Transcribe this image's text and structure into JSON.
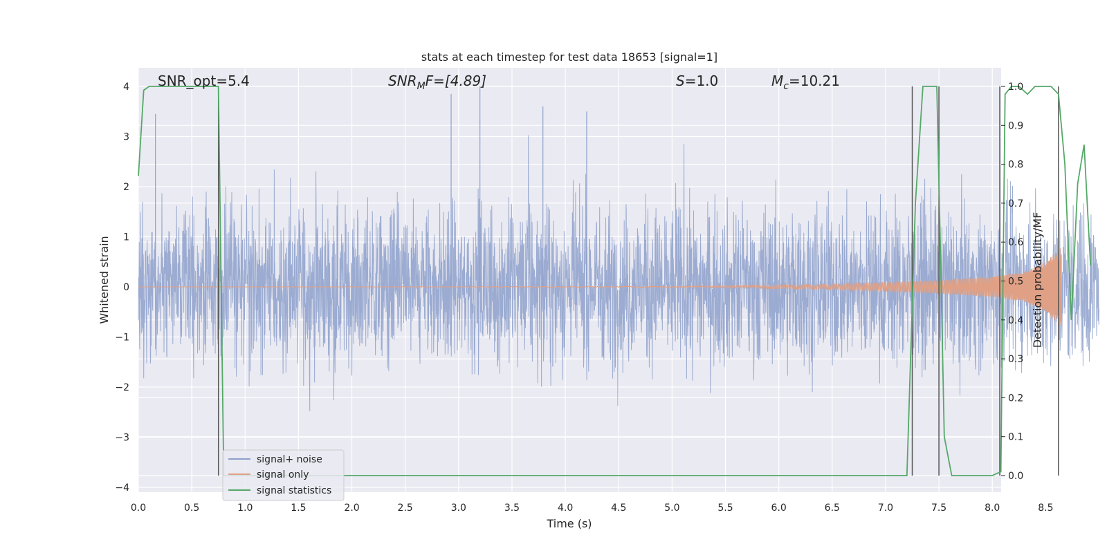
{
  "chart_data": {
    "type": "line",
    "title": "stats at each timestep for test data 18653 [signal=1]",
    "xlabel": "Time (s)",
    "ylabel": "Whitened strain",
    "y2label": "Detection probability/MF",
    "xlim": [
      0.0,
      9.0
    ],
    "ylim": [
      -4.3,
      4.4
    ],
    "y2lim": [
      -0.045,
      1.045
    ],
    "xticks": [
      "0.0",
      "0.5",
      "1.0",
      "1.5",
      "2.0",
      "2.5",
      "3.0",
      "3.5",
      "4.0",
      "4.5",
      "5.0",
      "5.5",
      "6.0",
      "6.5",
      "7.0",
      "7.5",
      "8.0",
      "8.5"
    ],
    "xtick_values": [
      0.0,
      0.5,
      1.0,
      1.5,
      2.0,
      2.5,
      3.0,
      3.5,
      4.0,
      4.5,
      5.0,
      5.5,
      6.0,
      6.5,
      7.0,
      7.5,
      8.0,
      8.5
    ],
    "yticks": [
      "4",
      "3",
      "2",
      "1",
      "0",
      "−1",
      "−2",
      "−3",
      "−4"
    ],
    "ytick_values": [
      4,
      3,
      2,
      1,
      0,
      -1,
      -2,
      -3,
      -4
    ],
    "y2ticks": [
      "1.0",
      "0.9",
      "0.8",
      "0.7",
      "0.6",
      "0.5",
      "0.4",
      "0.3",
      "0.2",
      "0.1",
      "0.0"
    ],
    "y2tick_values": [
      1.0,
      0.9,
      0.8,
      0.7,
      0.6,
      0.5,
      0.4,
      0.3,
      0.2,
      0.1,
      0.0
    ],
    "grid": true,
    "legend_position": "bottom-left",
    "annotations": {
      "snr_opt": "SNR_opt=5.4",
      "snr_mf_main": "SNR",
      "snr_mf_sub": "M",
      "snr_mf_rest": "F=[4.89]",
      "s_main": "S",
      "s_rest": "=1.0",
      "mc_main": "M",
      "mc_sub": "c",
      "mc_rest": "=10.21"
    },
    "series": [
      {
        "name": "signal+ noise",
        "color": "#8da0cb",
        "kind": "noise",
        "typical_amplitude": 1.6,
        "peak_values": [
          3.45,
          3.85,
          4.0,
          3.6,
          3.5
        ]
      },
      {
        "name": "signal only",
        "color": "#e0a085",
        "kind": "chirp",
        "envelope": {
          "x": [
            0.0,
            5.0,
            6.5,
            7.5,
            8.0,
            8.3,
            8.5,
            8.65
          ],
          "amplitude": [
            0.0,
            0.01,
            0.05,
            0.13,
            0.2,
            0.3,
            0.5,
            0.8
          ]
        }
      },
      {
        "name": "signal statistics",
        "color": "#55a868",
        "kind": "line",
        "axis": "y2",
        "x": [
          0.0,
          0.05,
          0.1,
          0.7,
          0.75,
          0.8,
          7.2,
          7.28,
          7.35,
          7.48,
          7.52,
          7.55,
          7.62,
          8.0,
          8.08,
          8.12,
          8.18,
          8.25,
          8.33,
          8.4,
          8.48,
          8.55,
          8.62,
          8.68,
          8.74,
          8.8,
          8.86,
          8.92
        ],
        "y": [
          0.77,
          0.99,
          1.0,
          1.0,
          1.0,
          0.0,
          0.0,
          0.7,
          1.0,
          1.0,
          0.5,
          0.1,
          0.0,
          0.0,
          0.01,
          0.98,
          1.0,
          1.0,
          0.98,
          1.0,
          1.0,
          1.0,
          0.98,
          0.8,
          0.4,
          0.75,
          0.85,
          0.54
        ]
      }
    ],
    "vertical_lines": {
      "color": "#555555",
      "x": [
        0.75,
        7.25,
        7.5,
        8.07,
        8.62
      ]
    }
  }
}
